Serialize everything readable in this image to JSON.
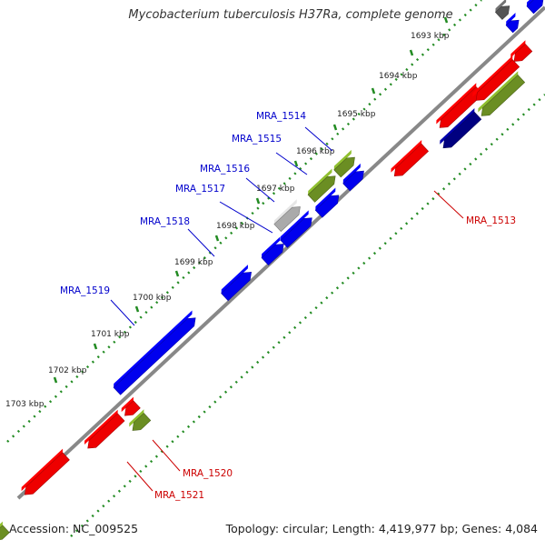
{
  "title": "Mycobacterium tuberculosis H37Ra, complete genome",
  "footer": {
    "accession": "Accession: NC_009525",
    "summary": "Topology: circular; Length: 4,419,977 bp; Genes: 4,084"
  },
  "ticks": [
    "1693 kbp",
    "1694 kbp",
    "1695 kbp",
    "1696 kbp",
    "1697 kbp",
    "1698 kbp",
    "1699 kbp",
    "1700 kbp",
    "1701 kbp",
    "1702 kbp",
    "1703 kbp"
  ],
  "gene_labels": {
    "forward": [
      "MRA_1514",
      "MRA_1515",
      "MRA_1516",
      "MRA_1517",
      "MRA_1518",
      "MRA_1519"
    ],
    "reverse": [
      "MRA_1513",
      "MRA_1520",
      "MRA_1521"
    ]
  },
  "colors": {
    "forward_label": "#0000cc",
    "reverse_label": "#cc0000",
    "blue": "#0000ee",
    "red": "#ee0000",
    "olive": "#6b8e23",
    "navy": "#000080",
    "gray": "#aaaaaa",
    "darkgray": "#555555",
    "backbone": "#777777",
    "ticks": "#228b22"
  }
}
